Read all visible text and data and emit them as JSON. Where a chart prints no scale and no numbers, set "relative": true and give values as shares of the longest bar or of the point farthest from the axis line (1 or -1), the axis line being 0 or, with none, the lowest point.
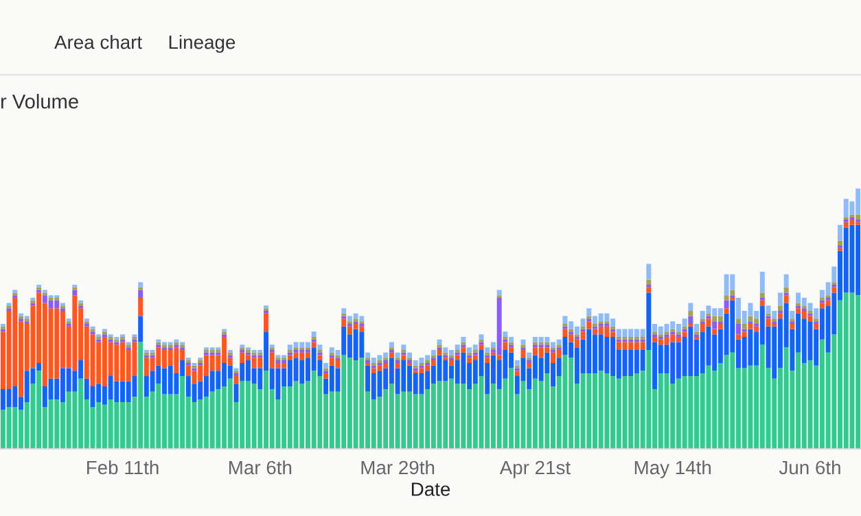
{
  "chart_data": {
    "type": "bar",
    "stacked": true,
    "relative": true,
    "title": "r Volume",
    "xlabel": "Date",
    "annotations": [
      "Area chart",
      "Lineage"
    ],
    "categories": [
      null,
      null,
      null,
      null,
      null,
      null,
      null,
      null,
      null,
      null,
      null,
      null,
      null,
      null,
      null,
      null,
      null,
      null,
      null,
      null,
      "Feb 11th",
      null,
      null,
      null,
      null,
      null,
      null,
      null,
      null,
      null,
      null,
      null,
      null,
      null,
      null,
      null,
      null,
      null,
      null,
      null,
      null,
      null,
      null,
      "Mar 6th",
      null,
      null,
      null,
      null,
      null,
      null,
      null,
      null,
      null,
      null,
      null,
      null,
      null,
      null,
      null,
      null,
      null,
      null,
      null,
      null,
      null,
      null,
      "Mar 29th",
      null,
      null,
      null,
      null,
      null,
      null,
      null,
      null,
      null,
      null,
      null,
      null,
      null,
      null,
      null,
      null,
      null,
      null,
      null,
      null,
      null,
      null,
      "Apr 21st",
      null,
      null,
      null,
      null,
      null,
      null,
      null,
      null,
      null,
      null,
      null,
      null,
      null,
      null,
      null,
      null,
      null,
      null,
      null,
      null,
      null,
      null,
      "May 14th",
      null,
      null,
      null,
      null,
      null,
      null,
      null,
      null,
      null,
      null,
      null,
      null,
      null,
      null,
      null,
      null,
      null,
      null,
      null,
      null,
      null,
      null,
      "Jun 6th",
      null,
      null,
      null,
      null,
      null,
      null,
      null,
      null
    ],
    "series": [
      {
        "color": "#35c98f",
        "values": [
          0.15,
          0.16,
          0.16,
          0.15,
          0.18,
          0.25,
          0.3,
          0.16,
          0.19,
          0.19,
          0.18,
          0.22,
          0.22,
          0.27,
          0.19,
          0.16,
          0.18,
          0.17,
          0.19,
          0.18,
          0.18,
          0.18,
          0.2,
          0.41,
          0.2,
          0.22,
          0.25,
          0.21,
          0.21,
          0.21,
          0.28,
          0.2,
          0.18,
          0.19,
          0.2,
          0.22,
          0.23,
          0.24,
          0.27,
          0.18,
          0.26,
          0.26,
          0.25,
          0.23,
          0.3,
          0.23,
          0.19,
          0.24,
          0.24,
          0.26,
          0.25,
          0.26,
          0.3,
          0.28,
          0.21,
          0.22,
          0.22,
          0.36,
          0.35,
          0.34,
          0.35,
          0.22,
          0.19,
          0.2,
          0.23,
          0.25,
          0.21,
          0.22,
          0.22,
          0.21,
          0.21,
          0.23,
          0.25,
          0.26,
          0.26,
          0.27,
          0.25,
          0.25,
          0.23,
          0.25,
          0.28,
          0.21,
          0.25,
          0.23,
          0.27,
          0.31,
          0.21,
          0.26,
          0.23,
          0.27,
          0.26,
          0.29,
          0.24,
          0.28,
          0.36,
          0.35,
          0.25,
          0.29,
          0.29,
          0.29,
          0.3,
          0.29,
          0.28,
          0.27,
          0.28,
          0.28,
          0.29,
          0.3,
          0.38,
          0.23,
          0.29,
          0.29,
          0.25,
          0.27,
          0.28,
          0.28,
          0.28,
          0.29,
          0.32,
          0.3,
          0.33,
          0.36,
          0.37,
          0.31,
          0.31,
          0.32,
          0.32,
          0.4,
          0.31,
          0.27,
          0.31,
          0.39,
          0.3,
          0.37,
          0.33,
          0.34,
          0.32,
          0.42,
          0.37,
          0.44,
          0.57,
          0.6,
          0.6,
          0.59
        ]
      },
      {
        "color": "#1463f3",
        "values": [
          0.08,
          0.07,
          0.08,
          0.05,
          0.12,
          0.06,
          0.03,
          0.08,
          0.08,
          0.08,
          0.13,
          0.09,
          0.08,
          0.07,
          0.08,
          0.08,
          0.07,
          0.07,
          0.09,
          0.08,
          0.08,
          0.08,
          0.08,
          0.1,
          0.08,
          0.08,
          0.07,
          0.1,
          0.11,
          0.08,
          0.06,
          0.08,
          0.07,
          0.07,
          0.08,
          0.08,
          0.07,
          0.09,
          0.05,
          0.07,
          0.07,
          0.08,
          0.06,
          0.08,
          0.15,
          0.08,
          0.12,
          0.07,
          0.1,
          0.09,
          0.09,
          0.09,
          0.09,
          0.06,
          0.06,
          0.1,
          0.09,
          0.11,
          0.09,
          0.12,
          0.1,
          0.1,
          0.1,
          0.1,
          0.08,
          0.1,
          0.1,
          0.12,
          0.1,
          0.08,
          0.08,
          0.07,
          0.07,
          0.1,
          0.08,
          0.05,
          0.09,
          0.12,
          0.1,
          0.09,
          0.1,
          0.12,
          0.11,
          0.11,
          0.11,
          0.06,
          0.07,
          0.09,
          0.08,
          0.09,
          0.09,
          0.08,
          0.09,
          0.07,
          0.07,
          0.06,
          0.14,
          0.13,
          0.17,
          0.15,
          0.14,
          0.14,
          0.15,
          0.11,
          0.1,
          0.1,
          0.09,
          0.08,
          0.22,
          0.18,
          0.11,
          0.11,
          0.16,
          0.14,
          0.15,
          0.19,
          0.14,
          0.16,
          0.15,
          0.14,
          0.13,
          0.16,
          0.2,
          0.11,
          0.12,
          0.14,
          0.13,
          0.15,
          0.16,
          0.2,
          0.19,
          0.17,
          0.16,
          0.15,
          0.17,
          0.15,
          0.14,
          0.12,
          0.18,
          0.16,
          0.19,
          0.25,
          0.26,
          0.27
        ]
      },
      {
        "color": "#ff5722",
        "values": [
          0.22,
          0.3,
          0.34,
          0.29,
          0.18,
          0.24,
          0.27,
          0.32,
          0.27,
          0.27,
          0.22,
          0.16,
          0.29,
          0.2,
          0.2,
          0.2,
          0.16,
          0.19,
          0.13,
          0.14,
          0.15,
          0.12,
          0.13,
          0.07,
          0.07,
          0.05,
          0.07,
          0.07,
          0.06,
          0.1,
          0.04,
          0.04,
          0.05,
          0.06,
          0.08,
          0.06,
          0.06,
          0.1,
          0.03,
          0.03,
          0.04,
          0.02,
          0.04,
          0.04,
          0.07,
          0.06,
          0.02,
          0.02,
          0.02,
          0.02,
          0.03,
          0.02,
          0.02,
          0.02,
          0.02,
          0.03,
          0.03,
          0.03,
          0.03,
          0.02,
          0.02,
          0.01,
          0.02,
          0.02,
          0.02,
          0.02,
          0.02,
          0.02,
          0.01,
          0.01,
          0.02,
          0.02,
          0.02,
          0.02,
          0.01,
          0.02,
          0.02,
          0.02,
          0.02,
          0.02,
          0.02,
          0.02,
          0.01,
          0.02,
          0.03,
          0.02,
          0.02,
          0.03,
          0.02,
          0.03,
          0.04,
          0.02,
          0.04,
          0.03,
          0.03,
          0.03,
          0.03,
          0.03,
          0.03,
          0.02,
          0.03,
          0.04,
          0.02,
          0.03,
          0.03,
          0.03,
          0.03,
          0.03,
          0.02,
          0.02,
          0.02,
          0.03,
          0.03,
          0.02,
          0.02,
          0.01,
          0.01,
          0.03,
          0.03,
          0.02,
          0.02,
          0.02,
          0.01,
          0.02,
          0.02,
          0.02,
          0.02,
          0.02,
          0.03,
          0.01,
          0.02,
          0.03,
          0.02,
          0.02,
          0.03,
          0.02,
          0.02,
          0.02,
          0.02,
          0.02,
          0.01,
          0.02,
          0.02,
          0.01
        ]
      },
      {
        "color": "#8b5cf6",
        "values": [
          0.01,
          0.01,
          0.01,
          0.01,
          0.01,
          0.01,
          0.01,
          0.03,
          0.03,
          0.03,
          0.01,
          0.01,
          0.02,
          0.01,
          0.01,
          0.01,
          0.01,
          0.01,
          0.01,
          0.01,
          0.01,
          0.01,
          0.01,
          0.03,
          0.01,
          0.01,
          0.01,
          0.01,
          0.01,
          0.01,
          0.01,
          0.01,
          0.01,
          0.01,
          0.01,
          0.01,
          0.01,
          0.01,
          0.01,
          0.01,
          0.01,
          0.01,
          0.01,
          0.01,
          0.01,
          0.01,
          0.01,
          0.01,
          0.01,
          0.01,
          0.01,
          0.01,
          0.01,
          0.01,
          0.01,
          0.01,
          0.01,
          0.01,
          0.01,
          0.01,
          0.01,
          0.01,
          0.01,
          0.01,
          0.01,
          0.01,
          0.01,
          0.01,
          0.01,
          0.01,
          0.01,
          0.01,
          0.01,
          0.01,
          0.01,
          0.01,
          0.01,
          0.01,
          0.01,
          0.01,
          0.01,
          0.01,
          0.01,
          0.22,
          0.01,
          0.01,
          0.01,
          0.01,
          0.01,
          0.01,
          0.01,
          0.01,
          0.01,
          0.01,
          0.01,
          0.01,
          0.01,
          0.01,
          0.01,
          0.01,
          0.01,
          0.01,
          0.01,
          0.01,
          0.01,
          0.01,
          0.01,
          0.01,
          0.01,
          0.01,
          0.01,
          0.01,
          0.01,
          0.01,
          0.01,
          0.03,
          0.01,
          0.01,
          0.01,
          0.03,
          0.01,
          0.03,
          0.01,
          0.04,
          0.01,
          0.01,
          0.01,
          0.01,
          0.01,
          0.01,
          0.01,
          0.01,
          0.01,
          0.01,
          0.01,
          0.01,
          0.01,
          0.01,
          0.01,
          0.01,
          0.01,
          0.01,
          0.01,
          0.01
        ]
      },
      {
        "color": "#a3a356",
        "values": [
          0.01,
          0.01,
          0.01,
          0.01,
          0.01,
          0.01,
          0.01,
          0.01,
          0.01,
          0.01,
          0.01,
          0.01,
          0.01,
          0.01,
          0.01,
          0.01,
          0.01,
          0.01,
          0.01,
          0.01,
          0.01,
          0.01,
          0.01,
          0.01,
          0.01,
          0.01,
          0.01,
          0.01,
          0.01,
          0.01,
          0.01,
          0.01,
          0.01,
          0.01,
          0.01,
          0.01,
          0.01,
          0.01,
          0.01,
          0.01,
          0.01,
          0.01,
          0.01,
          0.01,
          0.01,
          0.01,
          0.01,
          0.01,
          0.01,
          0.01,
          0.01,
          0.01,
          0.01,
          0.01,
          0.01,
          0.01,
          0.01,
          0.01,
          0.01,
          0.01,
          0.01,
          0.01,
          0.01,
          0.01,
          0.01,
          0.01,
          0.01,
          0.01,
          0.01,
          0.01,
          0.01,
          0.01,
          0.01,
          0.01,
          0.01,
          0.01,
          0.01,
          0.01,
          0.01,
          0.01,
          0.01,
          0.01,
          0.01,
          0.01,
          0.01,
          0.01,
          0.01,
          0.01,
          0.01,
          0.01,
          0.01,
          0.01,
          0.01,
          0.01,
          0.01,
          0.01,
          0.01,
          0.01,
          0.01,
          0.01,
          0.01,
          0.01,
          0.01,
          0.01,
          0.01,
          0.01,
          0.01,
          0.01,
          0.02,
          0.01,
          0.01,
          0.01,
          0.01,
          0.01,
          0.01,
          0.02,
          0.01,
          0.01,
          0.01,
          0.02,
          0.02,
          0.02,
          0.02,
          0.02,
          0.02,
          0.02,
          0.02,
          0.02,
          0.01,
          0.01,
          0.02,
          0.02,
          0.01,
          0.01,
          0.01,
          0.01,
          0.01,
          0.01,
          0.01,
          0.01,
          0.02,
          0.01,
          0.01,
          0.02
        ]
      },
      {
        "color": "#8fbcf8",
        "values": [
          0.01,
          0.01,
          0.01,
          0.01,
          0.01,
          0.01,
          0.01,
          0.01,
          0.01,
          0.01,
          0.01,
          0.01,
          0.01,
          0.01,
          0.01,
          0.01,
          0.01,
          0.01,
          0.01,
          0.01,
          0.01,
          0.01,
          0.01,
          0.02,
          0.01,
          0.01,
          0.01,
          0.01,
          0.01,
          0.01,
          0.01,
          0.01,
          0.01,
          0.01,
          0.01,
          0.01,
          0.01,
          0.01,
          0.01,
          0.01,
          0.01,
          0.01,
          0.01,
          0.01,
          0.01,
          0.01,
          0.01,
          0.01,
          0.02,
          0.02,
          0.02,
          0.02,
          0.02,
          0.02,
          0.02,
          0.02,
          0.02,
          0.02,
          0.02,
          0.02,
          0.02,
          0.02,
          0.02,
          0.02,
          0.02,
          0.02,
          0.02,
          0.02,
          0.02,
          0.02,
          0.02,
          0.02,
          0.02,
          0.02,
          0.02,
          0.02,
          0.02,
          0.02,
          0.02,
          0.02,
          0.02,
          0.02,
          0.02,
          0.02,
          0.02,
          0.02,
          0.02,
          0.02,
          0.02,
          0.02,
          0.02,
          0.02,
          0.02,
          0.02,
          0.03,
          0.03,
          0.03,
          0.03,
          0.03,
          0.03,
          0.03,
          0.03,
          0.03,
          0.03,
          0.03,
          0.03,
          0.03,
          0.03,
          0.06,
          0.03,
          0.03,
          0.03,
          0.03,
          0.03,
          0.03,
          0.03,
          0.03,
          0.03,
          0.03,
          0.03,
          0.03,
          0.08,
          0.06,
          0.08,
          0.05,
          0.05,
          0.03,
          0.08,
          0.03,
          0.03,
          0.05,
          0.05,
          0.03,
          0.04,
          0.03,
          0.03,
          0.04,
          0.03,
          0.05,
          0.06,
          0.06,
          0.07,
          0.05,
          0.1
        ]
      }
    ]
  }
}
